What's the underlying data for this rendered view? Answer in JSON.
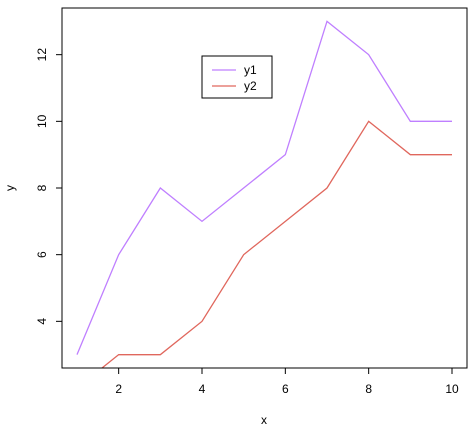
{
  "chart_data": {
    "type": "line",
    "x": [
      1,
      2,
      3,
      4,
      5,
      6,
      7,
      8,
      9,
      10
    ],
    "series": [
      {
        "name": "y1",
        "values": [
          3,
          6,
          8,
          7,
          8,
          9,
          13,
          12,
          10,
          10
        ],
        "color": "#bf7fff"
      },
      {
        "name": "y2",
        "values": [
          2,
          3,
          3,
          4,
          6,
          7,
          8,
          10,
          9,
          9
        ],
        "color": "#e0675d"
      }
    ],
    "xlabel": "x",
    "ylabel": "y",
    "xlim": [
      0.64,
      10.36
    ],
    "ylim": [
      2.6,
      13.4
    ],
    "x_ticks": [
      2,
      4,
      6,
      8,
      10
    ],
    "y_ticks": [
      4,
      6,
      8,
      10,
      12
    ],
    "grid": false,
    "legend_placement": "top-center"
  }
}
